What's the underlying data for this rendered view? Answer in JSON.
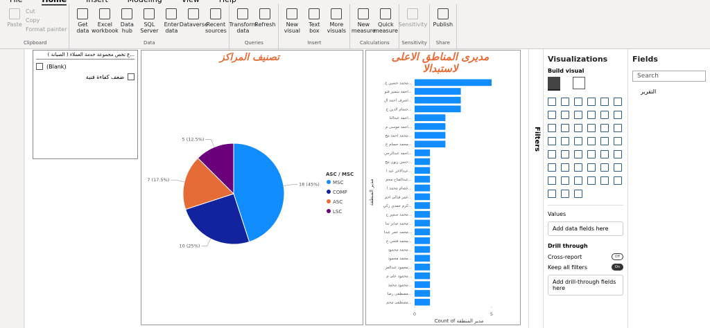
{
  "ribbon": {
    "tabs": [
      "File",
      "Home",
      "Insert",
      "Modeling",
      "View",
      "Help"
    ],
    "groups": [
      {
        "label": "Clipboard",
        "buttons": [
          "Paste",
          "Cut",
          "Copy",
          "Format painter"
        ]
      },
      {
        "label": "Data",
        "buttons": [
          "Get data",
          "Excel workbook",
          "Data hub",
          "SQL Server",
          "Enter data",
          "Dataverse",
          "Recent sources"
        ]
      },
      {
        "label": "Queries",
        "buttons": [
          "Transform data",
          "Refresh"
        ]
      },
      {
        "label": "Insert",
        "buttons": [
          "New visual",
          "Text box",
          "More visuals"
        ]
      },
      {
        "label": "Calculations",
        "buttons": [
          "New measure",
          "Quick measure"
        ]
      },
      {
        "label": "Sensitivity",
        "buttons": [
          "Sensitivity"
        ]
      },
      {
        "label": "Share",
        "buttons": [
          "Publish"
        ]
      }
    ]
  },
  "slicer": {
    "header": "...ع تخص مجموعة خدمة العملاء ( الصيانة )",
    "items": [
      "(Blank)",
      "ضعف كفاءة فنية"
    ]
  },
  "pie_chart": {
    "type": "pie",
    "title": "تصنيف المراكز",
    "legend_title": "ASC / MSC",
    "categories": [
      "MSC",
      "COMP",
      "ASC",
      "LSC"
    ],
    "values": [
      18,
      10,
      7,
      5
    ],
    "value_labels": [
      "18 (45%)",
      "10 (25%)",
      "7 (17.5%)",
      "5 (12.5%)"
    ],
    "colors": [
      "#118dff",
      "#12239e",
      "#e66c37",
      "#6b007b"
    ]
  },
  "bar_chart": {
    "type": "bar",
    "orientation": "horizontal",
    "title": "مديرى المناطق الاعلى لاستبدالا",
    "categories": [
      "محمد حسين ع...",
      "احمد سمير فتو...",
      "اشرف احمد ال...",
      "حسام الدين ع...",
      "احمد عبدالنا...",
      "احمد موسى م...",
      "محمد احمد مح...",
      "محمد حسام ع...",
      "احمد عبدالرحي...",
      "حسن زنون مح...",
      "عبدالاخر عبد ا...",
      "عبدالفتاح محم...",
      "عصام محمد ا...",
      "عمر قبالي احم...",
      "كرم حمدي زكي...",
      "محمد سمير ح...",
      "محمد صابر سا...",
      "محمد عمر عبدا...",
      "محمد فتحي ع...",
      "محمد محمود...",
      "محمد محمود...",
      "محمود عبدالعز...",
      "محمود علي م...",
      "محمود محمد...",
      "مصطفى رضا...",
      "مصطفى محم..."
    ],
    "values": [
      5,
      3,
      3,
      3,
      2,
      2,
      2,
      2,
      1,
      1,
      1,
      1,
      1,
      1,
      1,
      1,
      1,
      1,
      1,
      1,
      1,
      1,
      1,
      1,
      1,
      1
    ],
    "color": "#118dff",
    "xlim": [
      0,
      5
    ],
    "xticks": [
      0,
      5
    ],
    "xlabel": "Count of مدير المنطقة",
    "ylabel": "مدير المنطقة"
  },
  "filters_pane": {
    "title": "Filters"
  },
  "visualizations_pane": {
    "title": "Visualizations",
    "subtitle": "Build visual",
    "values_label": "Values",
    "values_well": "Add data fields here",
    "drill_title": "Drill through",
    "cross_report": "Cross-report",
    "cross_report_state": "Off",
    "keep_filters": "Keep all filters",
    "keep_filters_state": "On",
    "drill_well": "Add drill-through fields here"
  },
  "fields_pane": {
    "title": "Fields",
    "search": "Search",
    "tables": [
      "التقرير"
    ]
  }
}
